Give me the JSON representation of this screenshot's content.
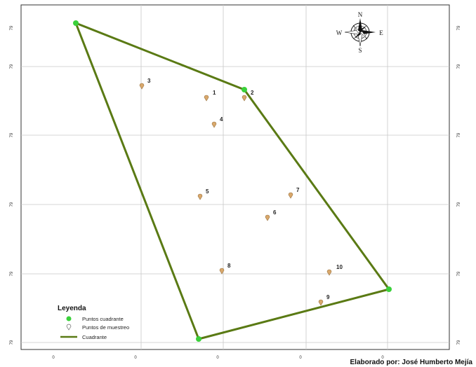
{
  "map": {
    "axis_ticks": {
      "left": [
        "79",
        "79",
        "79",
        "79",
        "79",
        "79"
      ],
      "right": [
        "79",
        "79",
        "79",
        "79",
        "79",
        "79"
      ],
      "bottom": [
        "0",
        "0",
        "0",
        "0",
        "0"
      ]
    },
    "quadrant_points": [
      {
        "id": "q1"
      },
      {
        "id": "q2"
      },
      {
        "id": "q3"
      },
      {
        "id": "q4"
      }
    ],
    "sample_points": [
      {
        "label": "1"
      },
      {
        "label": "2"
      },
      {
        "label": "3"
      },
      {
        "label": "4"
      },
      {
        "label": "5"
      },
      {
        "label": "6"
      },
      {
        "label": "7"
      },
      {
        "label": "8"
      },
      {
        "label": "9"
      },
      {
        "label": "10"
      }
    ],
    "colors": {
      "quadrant_line": "#5a7a14",
      "quadrant_point": "#3ad13a",
      "sample_point": "#d9a86c",
      "grid": "#c8c8c8"
    }
  },
  "compass": {
    "n": "N",
    "s": "S",
    "e": "E",
    "w": "W",
    "icon": "compass-rose-icon"
  },
  "legend": {
    "title": "Leyenda",
    "items": [
      {
        "label": "Puntos cuadrante",
        "icon": "green-dot-icon"
      },
      {
        "label": "Puntos de muestreo",
        "icon": "pin-icon"
      },
      {
        "label": "Cuadrante",
        "icon": "line-icon"
      }
    ]
  },
  "credit": "Elaborado por: José Humberto Mejía"
}
